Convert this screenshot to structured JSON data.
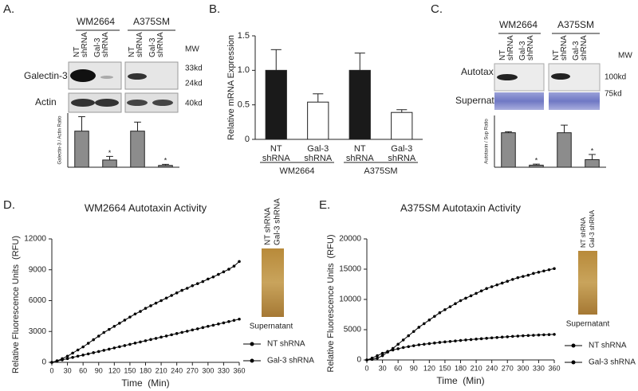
{
  "panels": {
    "A": {
      "label": "A.",
      "cell_lines": [
        "WM2664",
        "A375SM"
      ],
      "lanes": [
        "NT shRNA",
        "Gal-3 shRNA",
        "NT shRNA",
        "Gal-3 shRNA"
      ],
      "mw_header": "MW",
      "mw": [
        "33kd",
        "24kd",
        "40kd"
      ],
      "rows": [
        "Galectin-3",
        "Actin"
      ]
    },
    "B": {
      "label": "B."
    },
    "C": {
      "label": "C.",
      "cell_lines": [
        "WM2664",
        "A375SM"
      ],
      "lanes": [
        "NT shRNA",
        "Gal-3 shRNA",
        "NT shRNA",
        "Gal-3 shRNA"
      ],
      "mw_header": "MW",
      "mw": [
        "100kd",
        "75kd"
      ],
      "rows": [
        "Autotaxin",
        "Supernatant"
      ]
    },
    "D": {
      "label": "D.",
      "gel_lanes": [
        "NT shRNA",
        "Gal-3 shRNA"
      ],
      "gel_caption": "Supernatant"
    },
    "E": {
      "label": "E.",
      "gel_lanes": [
        "NT shRNA",
        "Gal-3 shRNA"
      ],
      "gel_caption": "Supernatant"
    }
  },
  "chart_data": [
    {
      "type": "bar",
      "ylabel": "Galectin-3 / Actin Ratio",
      "values": [
        1.0,
        0.2,
        1.0,
        0.05
      ],
      "errors": [
        0.4,
        0.1,
        0.25,
        0.03
      ],
      "annotations": [
        null,
        "*",
        null,
        "*"
      ],
      "color": "#8c8c8c",
      "ylim": [
        0,
        1.5
      ]
    },
    {
      "type": "bar",
      "ylabel": "Relative mRNA Expression",
      "categories": [
        "NT shRNA",
        "Gal-3 shRNA",
        "NT shRNA",
        "Gal-3 shRNA"
      ],
      "groups": [
        "WM2664",
        "A375SM"
      ],
      "values": [
        1.0,
        0.54,
        1.0,
        0.39
      ],
      "errors": [
        0.3,
        0.12,
        0.25,
        0.04
      ],
      "colors": [
        "#1a1a1a",
        "#ffffff",
        "#1a1a1a",
        "#ffffff"
      ],
      "ylim": [
        0,
        1.5
      ],
      "yticks": [
        0,
        0.5,
        {
          "value": 1,
          "label": "1.0"
        },
        1.5
      ]
    },
    {
      "type": "bar",
      "ylabel": "Autotaxin / Sup Ratio",
      "values": [
        1.0,
        0.06,
        1.0,
        0.22
      ],
      "errors": [
        0.03,
        0.03,
        0.22,
        0.15
      ],
      "annotations": [
        null,
        "*",
        null,
        "*"
      ],
      "color": "#8c8c8c",
      "ylim": [
        0,
        1.5
      ]
    },
    {
      "type": "line",
      "title": "WM2664 Autotaxin Activity",
      "xlabel": "Time  (Min)",
      "ylabel": "Relative Fluorescence Units  (RFU)",
      "legend": "right",
      "x": [
        0,
        10,
        20,
        30,
        40,
        50,
        60,
        70,
        80,
        90,
        100,
        110,
        120,
        130,
        140,
        150,
        160,
        170,
        180,
        190,
        200,
        210,
        220,
        230,
        240,
        250,
        260,
        270,
        280,
        290,
        300,
        310,
        320,
        330,
        340,
        350,
        360
      ],
      "series": [
        {
          "name": "NT shRNA",
          "color": "#000000",
          "values": [
            0,
            150,
            350,
            600,
            900,
            1200,
            1500,
            1850,
            2200,
            2550,
            2900,
            3200,
            3500,
            3800,
            4100,
            4400,
            4700,
            4950,
            5250,
            5500,
            5750,
            6000,
            6250,
            6500,
            6750,
            7000,
            7200,
            7450,
            7650,
            7850,
            8100,
            8300,
            8550,
            8800,
            9050,
            9350,
            9800
          ]
        },
        {
          "name": "Gal-3 shRNA",
          "color": "#000000",
          "values": [
            0,
            120,
            240,
            360,
            480,
            600,
            710,
            820,
            940,
            1050,
            1170,
            1280,
            1400,
            1520,
            1630,
            1750,
            1870,
            1980,
            2100,
            2220,
            2330,
            2450,
            2560,
            2680,
            2800,
            2910,
            3030,
            3150,
            3260,
            3380,
            3500,
            3610,
            3730,
            3840,
            3960,
            4080,
            4200
          ]
        }
      ],
      "xlim": [
        0,
        360
      ],
      "xticks": [
        0,
        30,
        60,
        90,
        120,
        150,
        180,
        210,
        240,
        270,
        300,
        330,
        360
      ],
      "ylim": [
        0,
        12000
      ],
      "yticks": [
        0,
        3000,
        6000,
        9000,
        12000
      ]
    },
    {
      "type": "line",
      "title": "A375SM Autotaxin Activity",
      "xlabel": "Time  (Min)",
      "ylabel": "Relative Fluorescence Units  (RFU)",
      "legend": "right",
      "x": [
        0,
        10,
        20,
        30,
        40,
        50,
        60,
        70,
        80,
        90,
        100,
        110,
        120,
        130,
        140,
        150,
        160,
        170,
        180,
        190,
        200,
        210,
        220,
        230,
        240,
        250,
        260,
        270,
        280,
        290,
        300,
        310,
        320,
        330,
        340,
        350,
        360
      ],
      "series": [
        {
          "name": "NT shRNA",
          "color": "#000000",
          "values": [
            0,
            100,
            300,
            700,
            1300,
            1900,
            2600,
            3300,
            4000,
            4700,
            5400,
            6000,
            6600,
            7200,
            7800,
            8300,
            8800,
            9300,
            9800,
            10200,
            10600,
            11000,
            11400,
            11800,
            12100,
            12400,
            12700,
            13000,
            13300,
            13600,
            13800,
            14000,
            14300,
            14500,
            14700,
            14900,
            15100
          ]
        },
        {
          "name": "Gal-3 shRNA",
          "color": "#000000",
          "values": [
            0,
            300,
            700,
            1100,
            1400,
            1650,
            1850,
            2050,
            2200,
            2350,
            2500,
            2600,
            2700,
            2800,
            2900,
            2980,
            3060,
            3140,
            3220,
            3300,
            3370,
            3440,
            3510,
            3580,
            3650,
            3710,
            3770,
            3830,
            3890,
            3940,
            3990,
            4040,
            4080,
            4120,
            4160,
            4190,
            4220
          ]
        }
      ],
      "xlim": [
        0,
        360
      ],
      "xticks": [
        0,
        30,
        60,
        90,
        120,
        150,
        180,
        210,
        240,
        270,
        300,
        330,
        360
      ],
      "ylim": [
        0,
        20000
      ],
      "yticks": [
        0,
        5000,
        10000,
        15000,
        20000
      ]
    }
  ]
}
